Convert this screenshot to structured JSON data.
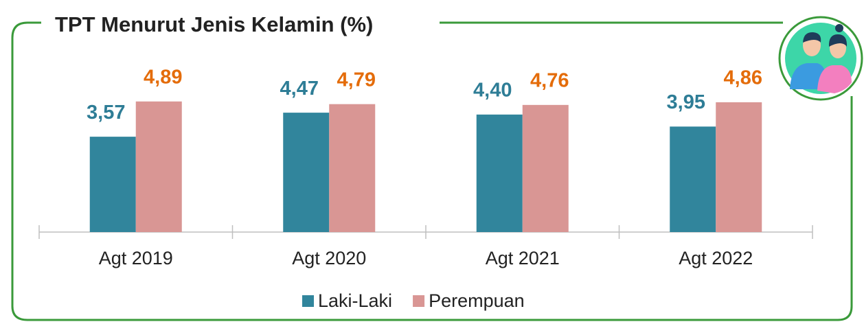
{
  "chart_data": {
    "type": "bar",
    "title": "TPT Menurut Jenis Kelamin (%)",
    "categories": [
      "Agt 2019",
      "Agt 2020",
      "Agt 2021",
      "Agt 2022"
    ],
    "series": [
      {
        "name": "Laki-Laki",
        "color": "#31859c",
        "label_color": "#2e7d96",
        "values": [
          3.57,
          4.47,
          4.4,
          3.95
        ],
        "value_labels": [
          "3,57",
          "4,47",
          "4,40",
          "3,95"
        ]
      },
      {
        "name": "Perempuan",
        "color": "#d99694",
        "label_color": "#e46c0a",
        "values": [
          4.89,
          4.79,
          4.76,
          4.86
        ],
        "value_labels": [
          "4,89",
          "4,79",
          "4,76",
          "4,86"
        ]
      }
    ],
    "ylim": [
      0,
      5
    ],
    "legend": "bottom"
  }
}
